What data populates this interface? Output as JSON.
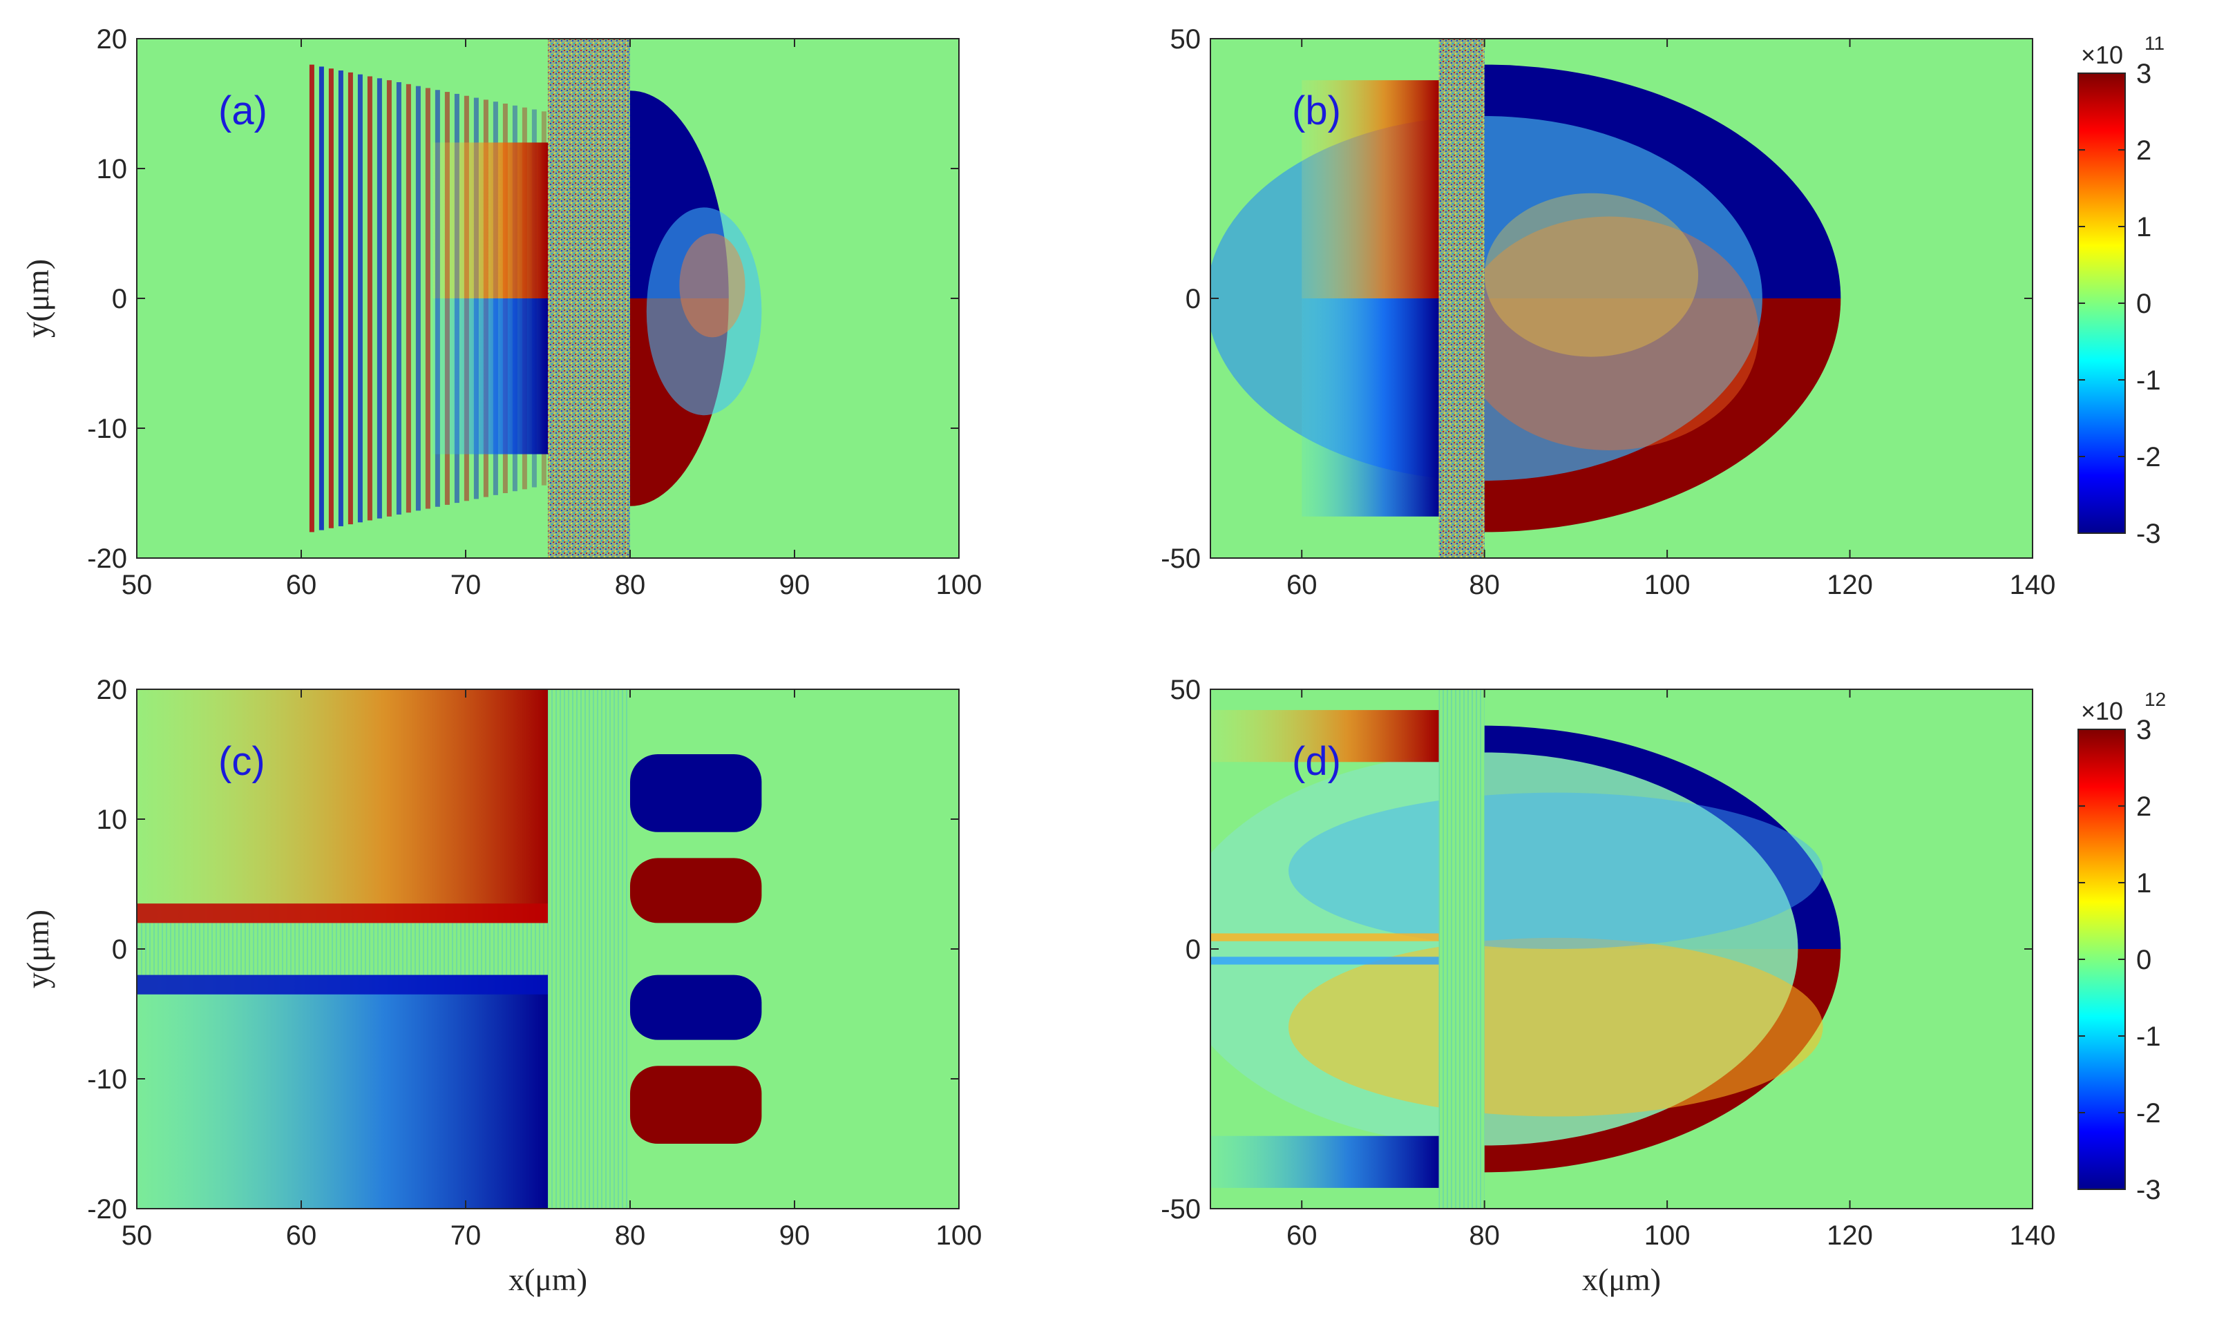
{
  "chart_data": [
    {
      "type": "heatmap",
      "panel_label": "(a)",
      "xlabel": "",
      "ylabel": "y(μm)",
      "xlim": [
        50,
        100
      ],
      "ylim": [
        -20,
        20
      ],
      "xticks": [
        "50",
        "60",
        "70",
        "80",
        "90",
        "100"
      ],
      "yticks": [
        "-20",
        "-10",
        "0",
        "10",
        "20"
      ],
      "structure": {
        "target_x_range": [
          75,
          80
        ],
        "pulse_front_x": 60.5,
        "rear_negative_region": {
          "x": [
            80,
            86
          ],
          "y": [
            0,
            16
          ],
          "sign": "negative"
        },
        "rear_positive_region": {
          "x": [
            80,
            86
          ],
          "y": [
            -16,
            0
          ],
          "sign": "positive"
        },
        "front_positive_region": {
          "x": [
            68,
            75
          ],
          "y": [
            0,
            12
          ],
          "sign": "positive"
        },
        "front_negative_region": {
          "x": [
            68,
            75
          ],
          "y": [
            -12,
            0
          ],
          "sign": "negative"
        }
      }
    },
    {
      "type": "heatmap",
      "panel_label": "(b)",
      "xlabel": "",
      "ylabel": "",
      "xlim": [
        50,
        140
      ],
      "ylim": [
        -50,
        50
      ],
      "xticks": [
        "60",
        "80",
        "100",
        "120",
        "140"
      ],
      "yticks": [
        "-50",
        "0",
        "50"
      ],
      "colorbar": {
        "min": -3,
        "max": 3,
        "ticks": [
          "-3",
          "-2",
          "-1",
          "0",
          "1",
          "2",
          "3"
        ],
        "exponent_base": "×10",
        "exponent": "11"
      },
      "structure": {
        "target_x_range": [
          75,
          80
        ],
        "shell_outer_x": 119,
        "shell_half_height": 45,
        "front_positive_region": {
          "x": [
            60,
            75
          ],
          "y": [
            0,
            42
          ],
          "sign": "positive"
        },
        "front_negative_region": {
          "x": [
            60,
            75
          ],
          "y": [
            -42,
            0
          ],
          "sign": "negative"
        },
        "rear_upper": "negative",
        "rear_lower": "positive"
      }
    },
    {
      "type": "heatmap",
      "panel_label": "(c)",
      "xlabel": "x(μm)",
      "ylabel": "y(μm)",
      "xlim": [
        50,
        100
      ],
      "ylim": [
        -20,
        20
      ],
      "xticks": [
        "50",
        "60",
        "70",
        "80",
        "90",
        "100"
      ],
      "yticks": [
        "-20",
        "-10",
        "0",
        "10",
        "20"
      ],
      "structure": {
        "target_x_range": [
          75,
          80
        ],
        "channel_y_range": [
          -2,
          2
        ],
        "upper_front": "positive",
        "lower_front": "negative",
        "rear_lobes": [
          {
            "y": [
              9,
              15
            ],
            "sign": "negative"
          },
          {
            "y": [
              2,
              7
            ],
            "sign": "positive"
          },
          {
            "y": [
              -7,
              -2
            ],
            "sign": "negative"
          },
          {
            "y": [
              -15,
              -9
            ],
            "sign": "positive"
          }
        ]
      }
    },
    {
      "type": "heatmap",
      "panel_label": "(d)",
      "xlabel": "x(μm)",
      "ylabel": "",
      "xlim": [
        50,
        140
      ],
      "ylim": [
        -50,
        50
      ],
      "xticks": [
        "60",
        "80",
        "100",
        "120",
        "140"
      ],
      "yticks": [
        "-50",
        "0",
        "50"
      ],
      "colorbar": {
        "min": -3,
        "max": 3,
        "ticks": [
          "-3",
          "-2",
          "-1",
          "0",
          "1",
          "2",
          "3"
        ],
        "exponent_base": "×10",
        "exponent": "12"
      },
      "structure": {
        "target_x_range": [
          75,
          80
        ],
        "shell_outer_x": 119,
        "shell_half_height": 43,
        "rear_upper": "negative",
        "rear_lower": "positive",
        "front_upper_band": {
          "y": [
            36,
            46
          ],
          "sign": "positive"
        },
        "front_lower_band": {
          "y": [
            -46,
            -36
          ],
          "sign": "negative"
        }
      }
    }
  ]
}
